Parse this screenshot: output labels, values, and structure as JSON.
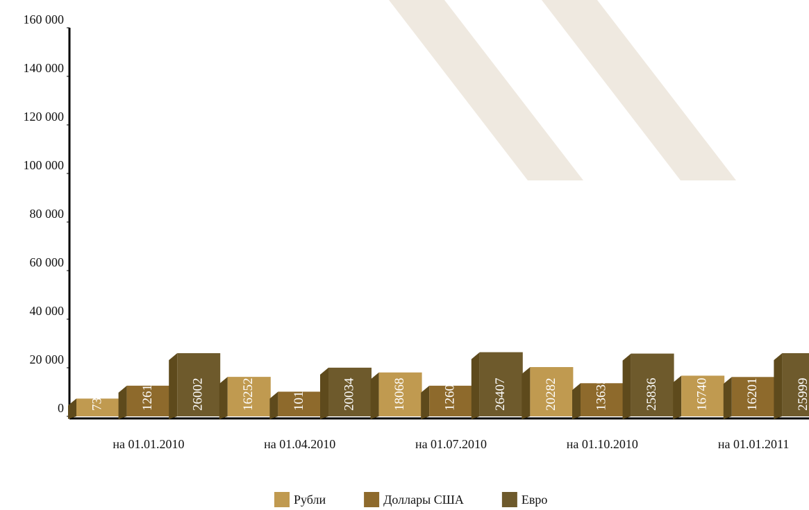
{
  "chart_data": {
    "type": "bar",
    "categories": [
      "на 01.01.2010",
      "на 01.04.2010",
      "на 01.07.2010",
      "на 01.10.2010",
      "на 01.01.2011"
    ],
    "series": [
      {
        "name": "Рубли",
        "color": "#c09a50",
        "values": [
          7308,
          16252,
          18068,
          20282,
          16740
        ]
      },
      {
        "name": "Доллары США",
        "color": "#8e6a2c",
        "values": [
          12617,
          10151,
          12607,
          13635,
          16201
        ]
      },
      {
        "name": "Евро",
        "color": "#6e5a2c",
        "values": [
          26002,
          20034,
          26407,
          25836,
          25999
        ]
      }
    ],
    "ylim": [
      0,
      160000
    ],
    "yticks": [
      0,
      {
        "value": 20000,
        "label": "20 000"
      },
      {
        "value": 40000,
        "label": "40 000"
      },
      {
        "value": 60000,
        "label": "60 000"
      },
      {
        "value": 80000,
        "label": "80 000"
      },
      {
        "value": 100000,
        "label": "100 000"
      },
      {
        "value": 120000,
        "label": "120 000"
      },
      {
        "value": 140000,
        "label": "140 000"
      },
      {
        "value": 160000,
        "label": "160 000"
      }
    ],
    "legend": "bottom"
  }
}
